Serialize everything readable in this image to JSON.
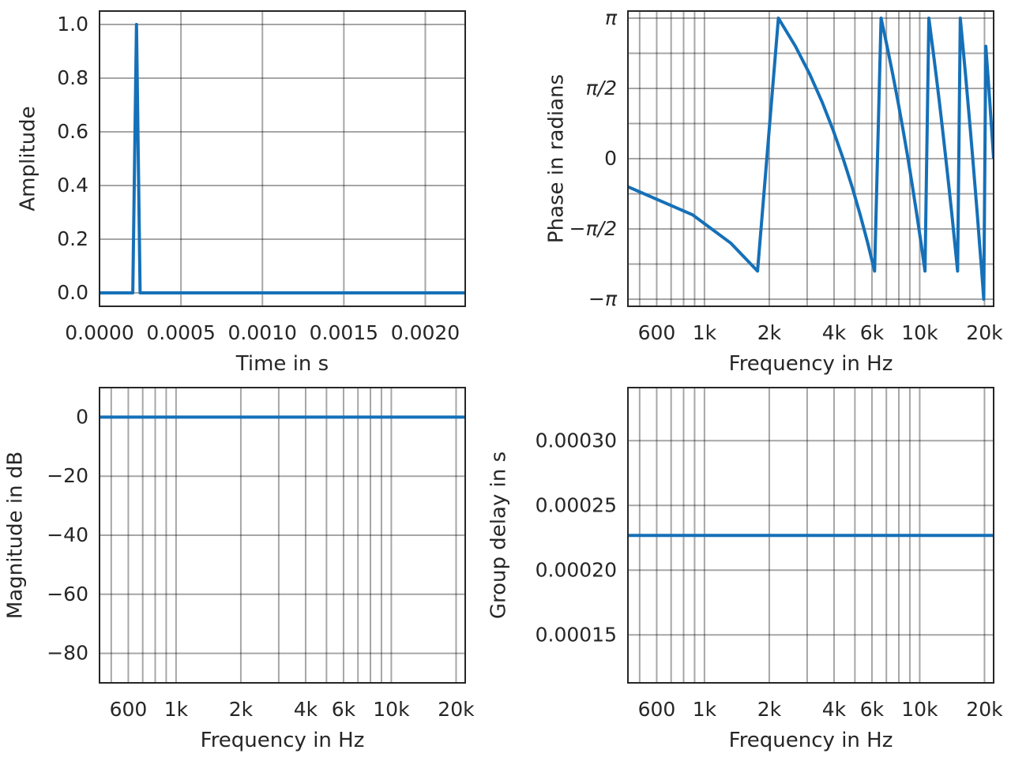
{
  "line_color": "#1570b8",
  "chart_data": [
    {
      "type": "line",
      "xlabel": "Time in s",
      "ylabel": "Amplitude",
      "xscale": "linear",
      "xlim": [
        0,
        0.002245
      ],
      "ylim": [
        -0.05,
        1.05
      ],
      "grid": true,
      "xticks": [
        0,
        0.0005,
        0.001,
        0.0015,
        0.002
      ],
      "xtick_labels": [
        "0.0000",
        "0.0005",
        "0.0010",
        "0.0015",
        "0.0020"
      ],
      "yticks": [
        0,
        0.2,
        0.4,
        0.6,
        0.8,
        1.0
      ],
      "ytick_labels": [
        "0.0",
        "0.2",
        "0.4",
        "0.6",
        "0.8",
        "1.0"
      ],
      "x": [
        0,
        0.0002041,
        0.0002268,
        0.0002494,
        0.002245
      ],
      "y": [
        0,
        0,
        1,
        0,
        0
      ]
    },
    {
      "type": "line",
      "xlabel": "Frequency in Hz",
      "ylabel": "Phase in radians",
      "xscale": "log",
      "xlim": [
        441,
        22050
      ],
      "ylim": [
        -3.3,
        3.3
      ],
      "grid": true,
      "xticks": [
        600,
        1000,
        2000,
        4000,
        6000,
        10000,
        20000
      ],
      "xtick_labels": [
        "600",
        "1k",
        "2k",
        "4k",
        "6k",
        "10k",
        "20k"
      ],
      "yticks": [
        -3.1416,
        -1.5708,
        0,
        1.5708,
        3.1416
      ],
      "ytick_labels": [
        "−π",
        "−π/2",
        "0",
        "π/2",
        "π"
      ],
      "yminor": [
        -2.3562,
        -0.7854,
        0.7854,
        2.3562
      ],
      "x": [
        441,
        882,
        1323,
        1764,
        2205,
        2646,
        3087,
        3528,
        3969,
        4410,
        4851,
        5292,
        5733,
        6174,
        6615,
        7056,
        7497,
        7938,
        8379,
        8820,
        9261,
        9702,
        10143,
        10584,
        11025,
        11466,
        11907,
        12348,
        12789,
        13230,
        13671,
        14112,
        14553,
        14994,
        15435,
        15876,
        16317,
        16758,
        17199,
        17640,
        18081,
        18522,
        18963,
        19404,
        19845,
        20286,
        20727,
        21168,
        21609,
        22050
      ],
      "y": [
        -0.6283,
        -1.2566,
        -1.885,
        -2.5133,
        3.1416,
        2.5133,
        1.885,
        1.2566,
        0.6283,
        0,
        -0.6283,
        -1.2566,
        -1.885,
        -2.5133,
        3.1416,
        2.5133,
        1.885,
        1.2566,
        0.6283,
        0,
        -0.6283,
        -1.2566,
        -1.885,
        -2.5133,
        3.1416,
        2.5133,
        1.885,
        1.2566,
        0.6283,
        0,
        -0.6283,
        -1.2566,
        -1.885,
        -2.5133,
        3.1416,
        2.5133,
        1.885,
        1.2566,
        0.6283,
        0,
        -0.6283,
        -1.2566,
        -1.885,
        -2.5133,
        -3.1416,
        2.5133,
        1.885,
        1.2566,
        0.6283,
        0
      ]
    },
    {
      "type": "line",
      "xlabel": "Frequency in Hz",
      "ylabel": "Magnitude in dB",
      "xscale": "log",
      "xlim": [
        441,
        22050
      ],
      "ylim": [
        -90,
        10
      ],
      "grid": true,
      "xticks": [
        600,
        1000,
        2000,
        4000,
        6000,
        10000,
        20000
      ],
      "xtick_labels": [
        "600",
        "1k",
        "2k",
        "4k",
        "6k",
        "10k",
        "20k"
      ],
      "yticks": [
        -80,
        -60,
        -40,
        -20,
        0
      ],
      "ytick_labels": [
        "−80",
        "−60",
        "−40",
        "−20",
        "0"
      ],
      "x": [
        441,
        22050
      ],
      "y": [
        0,
        0
      ]
    },
    {
      "type": "line",
      "xlabel": "Frequency in Hz",
      "ylabel": "Group delay in s",
      "xscale": "log",
      "xlim": [
        441,
        22050
      ],
      "ylim": [
        0.000113,
        0.000341
      ],
      "grid": true,
      "xticks": [
        600,
        1000,
        2000,
        4000,
        6000,
        10000,
        20000
      ],
      "xtick_labels": [
        "600",
        "1k",
        "2k",
        "4k",
        "6k",
        "10k",
        "20k"
      ],
      "yticks": [
        0.00015,
        0.0002,
        0.00025,
        0.0003
      ],
      "ytick_labels": [
        "0.00015",
        "0.00020",
        "0.00025",
        "0.00030"
      ],
      "x": [
        441,
        22050
      ],
      "y": [
        0.0002268,
        0.0002268
      ]
    }
  ]
}
